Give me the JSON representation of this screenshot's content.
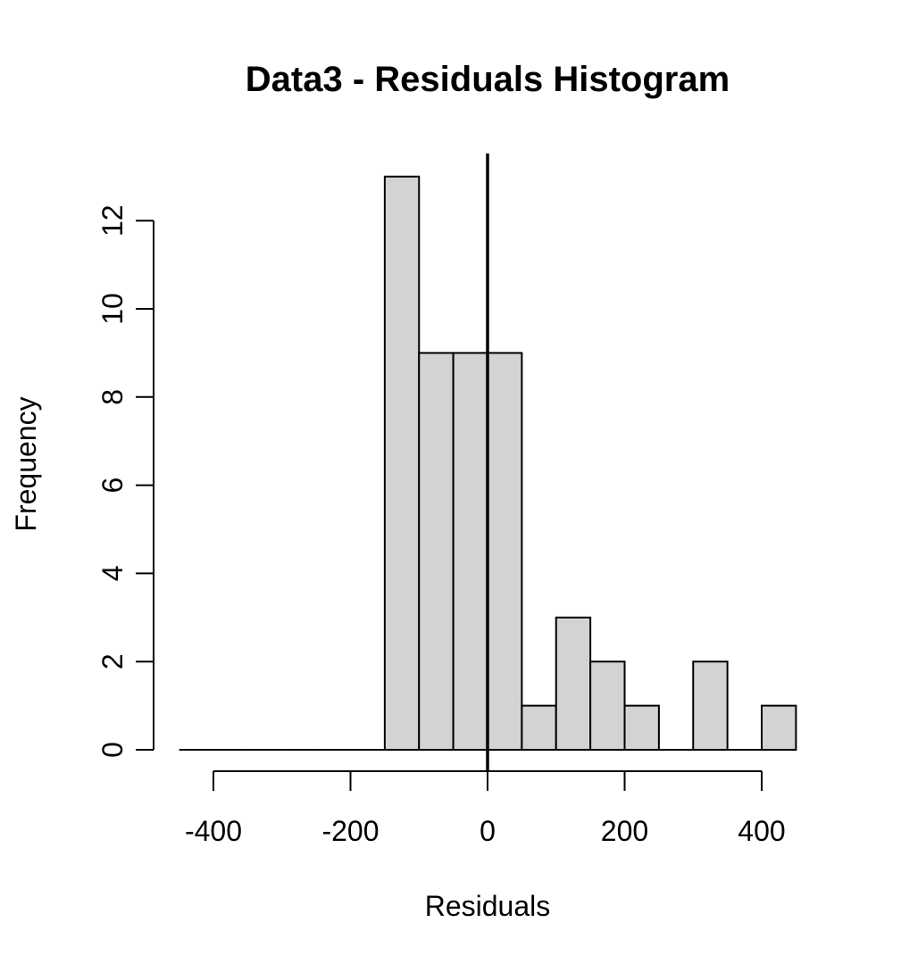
{
  "chart_data": {
    "type": "histogram",
    "title": "Data3 - Residuals Histogram",
    "xlabel": "Residuals",
    "ylabel": "Frequency",
    "bin_edges": [
      -450,
      -400,
      -350,
      -300,
      -250,
      -200,
      -150,
      -100,
      -50,
      0,
      50,
      100,
      150,
      200,
      250,
      300,
      350,
      400,
      450
    ],
    "counts": [
      0,
      0,
      0,
      0,
      0,
      0,
      13,
      9,
      9,
      9,
      1,
      3,
      2,
      1,
      0,
      2,
      0,
      1
    ],
    "x_ticks": [
      -400,
      -200,
      0,
      200,
      400
    ],
    "y_ticks": [
      0,
      2,
      4,
      6,
      8,
      10,
      12
    ],
    "xlim": [
      -450,
      450
    ],
    "ylim": [
      0,
      13.5
    ],
    "reference_line_x": 0,
    "grid": false,
    "colors": {
      "bar_fill": "#d3d3d3",
      "bar_stroke": "#000000"
    }
  }
}
